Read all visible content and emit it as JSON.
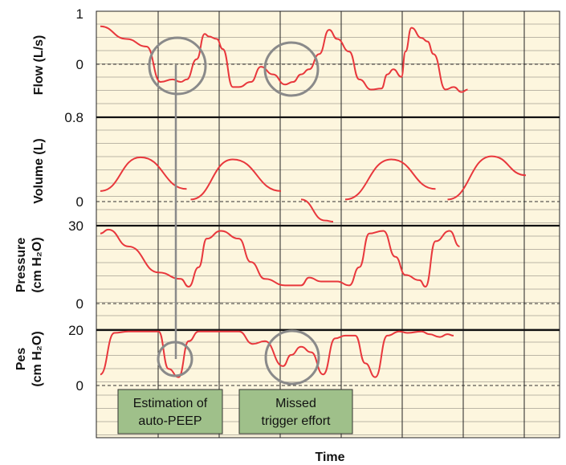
{
  "chart_data": {
    "type": "line",
    "xlabel": "Time",
    "colors": {
      "trace": "#e8373c",
      "grid": "#222222",
      "background": "#fdf6de",
      "annotation_box": "#9fc08a",
      "marker": "#8a8a8a"
    },
    "panels": [
      {
        "id": "flow",
        "ylabel_lines": [
          "Flow (L/s)"
        ],
        "ticks": [
          {
            "value": 1,
            "label": "1"
          },
          {
            "value": 0,
            "label": "0"
          }
        ],
        "ylim": [
          -0.5,
          1
        ],
        "x": [
          0.2,
          1.5,
          2.5,
          3.2,
          3.8,
          4.2,
          4.5,
          5,
          5.4,
          5.6,
          6,
          6.3,
          6.8,
          7.1,
          7.7,
          8.2,
          8.8,
          9.4,
          9.8,
          10.2,
          10.6,
          11.1,
          11.6,
          12,
          12.6,
          13.1,
          13.7,
          14.2,
          14.5,
          14.8,
          15.2,
          15.4,
          15.7,
          16.2,
          16.5,
          16.8,
          17.4,
          17.8,
          18.2,
          18.5
        ],
        "y": [
          0.75,
          0.5,
          0.35,
          -0.35,
          -0.3,
          -0.35,
          -0.3,
          0.1,
          0.6,
          0.55,
          0.5,
          0.3,
          -0.45,
          -0.45,
          -0.35,
          -0.05,
          -0.2,
          -0.4,
          -0.35,
          -0.2,
          -0.1,
          0.2,
          0.68,
          0.5,
          0.25,
          -0.3,
          -0.5,
          -0.48,
          -0.2,
          -0.1,
          -0.25,
          0.25,
          0.72,
          0.52,
          0.45,
          0.2,
          -0.5,
          -0.45,
          -0.55,
          -0.5
        ]
      },
      {
        "id": "volume",
        "ylabel_lines": [
          "Volume (L)"
        ],
        "ticks": [
          {
            "value": 0.8,
            "label": "0.8"
          },
          {
            "value": 0,
            "label": "0"
          }
        ],
        "ylim": [
          -0.1,
          0.8
        ],
        "segments": [
          {
            "x": [
              0.2,
              2.2,
              4.5
            ],
            "y": [
              0.1,
              0.42,
              0.12
            ]
          },
          {
            "x": [
              4.7,
              6.8,
              9.2
            ],
            "y": [
              0.02,
              0.4,
              0.1
            ]
          },
          {
            "x": [
              10.2,
              11.4
            ],
            "y": [
              0.02,
              -0.18
            ]
          },
          {
            "x": [
              11.4,
              11.8
            ],
            "y": [
              -0.18,
              -0.19
            ]
          },
          {
            "x": [
              12.4,
              14.7,
              16.9
            ],
            "y": [
              0.02,
              0.4,
              0.12
            ]
          },
          {
            "x": [
              17.5,
              19.7,
              21.4
            ],
            "y": [
              0.02,
              0.43,
              0.25
            ]
          }
        ]
      },
      {
        "id": "pressure",
        "ylabel_lines": [
          "Pressure",
          "(cm H₂O)"
        ],
        "ticks": [
          {
            "value": 30,
            "label": "30"
          },
          {
            "value": 0,
            "label": "0"
          }
        ],
        "ylim": [
          -3,
          30
        ],
        "x": [
          0.2,
          0.6,
          1.6,
          3.1,
          4.2,
          4.6,
          5.1,
          5.5,
          6.2,
          7.1,
          7.7,
          8.4,
          9.4,
          10.2,
          10.6,
          11.2,
          12,
          12.6,
          13.1,
          13.6,
          14.3,
          14.9,
          15.4,
          16.1,
          16.4,
          16.9,
          17.6,
          18.1
        ],
        "y": [
          27,
          28.5,
          22,
          12,
          9.5,
          6.5,
          14,
          25,
          28,
          25,
          16,
          9.5,
          7,
          7,
          10,
          8.5,
          8.5,
          7,
          14,
          27,
          28,
          18,
          11,
          9,
          6.5,
          24,
          28,
          22
        ]
      },
      {
        "id": "pes",
        "ylabel_lines": [
          "Pes",
          "(cm H₂O)"
        ],
        "ticks": [
          {
            "value": 20,
            "label": "20"
          },
          {
            "value": 0,
            "label": "0"
          }
        ],
        "ylim": [
          -12,
          20
        ],
        "x": [
          0.2,
          0.9,
          1.6,
          2.2,
          3.1,
          3.6,
          4.1,
          4.6,
          5.1,
          5.4,
          5.9,
          7.1,
          7.8,
          8.4,
          9.3,
          9.7,
          10.2,
          10.7,
          11.3,
          11.9,
          12.4,
          12.9,
          13.4,
          13.9,
          14.5,
          15.1,
          15.5,
          16.2,
          16.6,
          17.1,
          17.5,
          17.8
        ],
        "y": [
          4,
          19,
          19.5,
          19.5,
          19.5,
          6,
          3,
          16,
          19.5,
          19.5,
          19.5,
          19.5,
          15,
          16,
          7,
          11,
          14,
          12,
          4,
          17,
          18,
          18,
          8,
          3,
          18,
          19.5,
          19,
          19.5,
          18.5,
          17.5,
          18.5,
          18
        ]
      }
    ],
    "annotations": [
      {
        "id": "auto-peep",
        "lines": [
          "Estimation of",
          "auto-PEEP"
        ]
      },
      {
        "id": "missed-trigger",
        "lines": [
          "Missed",
          "trigger effort"
        ]
      }
    ]
  }
}
